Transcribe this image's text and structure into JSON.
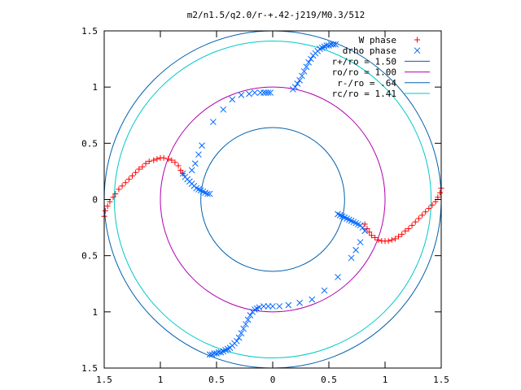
{
  "chart_data": {
    "type": "scatter",
    "title": "m2/n1.5/q2.0/r-+.42-j219/M0.3/512",
    "xlabel": "",
    "ylabel": "",
    "xlim": [
      -1.5,
      1.5
    ],
    "ylim": [
      -1.5,
      1.5
    ],
    "x_ticks": [
      {
        "value": -1.5,
        "label": "1.5"
      },
      {
        "value": -1.0,
        "label": "1"
      },
      {
        "value": -0.5,
        "label": "0.5"
      },
      {
        "value": 0.0,
        "label": "0"
      },
      {
        "value": 0.5,
        "label": "0.5"
      },
      {
        "value": 1.0,
        "label": "1"
      },
      {
        "value": 1.5,
        "label": "1.5"
      }
    ],
    "y_ticks": [
      {
        "value": 1.5,
        "label": "1.5"
      },
      {
        "value": 1.0,
        "label": "1"
      },
      {
        "value": 0.5,
        "label": "0.5"
      },
      {
        "value": 0.0,
        "label": "0"
      },
      {
        "value": -0.5,
        "label": "0.5"
      },
      {
        "value": -1.0,
        "label": "1"
      },
      {
        "value": -1.5,
        "label": "1.5"
      }
    ],
    "grid": false,
    "legend_position": "top-right",
    "series": [
      {
        "name": "W phase",
        "marker": "plus",
        "color": "#ff0000",
        "points": [
          [
            -1.5,
            -0.15
          ],
          [
            -1.49,
            -0.1
          ],
          [
            -1.47,
            -0.06
          ],
          [
            -1.45,
            -0.02
          ],
          [
            -1.42,
            0.02
          ],
          [
            -1.4,
            0.05
          ],
          [
            -1.37,
            0.09
          ],
          [
            -1.34,
            0.12
          ],
          [
            -1.31,
            0.15
          ],
          [
            -1.28,
            0.18
          ],
          [
            -1.25,
            0.21
          ],
          [
            -1.22,
            0.24
          ],
          [
            -1.19,
            0.27
          ],
          [
            -1.16,
            0.29
          ],
          [
            -1.13,
            0.32
          ],
          [
            -1.1,
            0.34
          ],
          [
            -1.06,
            0.35
          ],
          [
            -1.03,
            0.36
          ],
          [
            -1.0,
            0.37
          ],
          [
            -0.97,
            0.37
          ],
          [
            -0.93,
            0.36
          ],
          [
            -0.9,
            0.35
          ],
          [
            -0.87,
            0.33
          ],
          [
            -0.84,
            0.3
          ],
          [
            -0.82,
            0.26
          ],
          [
            -0.8,
            0.23
          ],
          [
            0.82,
            -0.22
          ],
          [
            0.84,
            -0.26
          ],
          [
            0.86,
            -0.29
          ],
          [
            0.88,
            -0.32
          ],
          [
            0.91,
            -0.34
          ],
          [
            0.94,
            -0.36
          ],
          [
            0.97,
            -0.37
          ],
          [
            1.0,
            -0.37
          ],
          [
            1.03,
            -0.37
          ],
          [
            1.06,
            -0.36
          ],
          [
            1.09,
            -0.35
          ],
          [
            1.12,
            -0.33
          ],
          [
            1.15,
            -0.31
          ],
          [
            1.18,
            -0.28
          ],
          [
            1.21,
            -0.26
          ],
          [
            1.24,
            -0.23
          ],
          [
            1.27,
            -0.2
          ],
          [
            1.3,
            -0.17
          ],
          [
            1.33,
            -0.14
          ],
          [
            1.36,
            -0.11
          ],
          [
            1.39,
            -0.08
          ],
          [
            1.42,
            -0.05
          ],
          [
            1.45,
            -0.02
          ],
          [
            1.47,
            0.02
          ],
          [
            1.49,
            0.06
          ],
          [
            1.5,
            0.1
          ]
        ]
      },
      {
        "name": "drho phase",
        "marker": "cross",
        "color": "#0066ff",
        "points": [
          [
            -0.8,
            0.23
          ],
          [
            -0.78,
            0.2
          ],
          [
            -0.76,
            0.18
          ],
          [
            -0.74,
            0.16
          ],
          [
            -0.72,
            0.14
          ],
          [
            -0.7,
            0.12
          ],
          [
            -0.68,
            0.1
          ],
          [
            -0.66,
            0.09
          ],
          [
            -0.64,
            0.08
          ],
          [
            -0.62,
            0.07
          ],
          [
            -0.6,
            0.06
          ],
          [
            -0.58,
            0.05
          ],
          [
            -0.56,
            0.05
          ],
          [
            -0.63,
            0.48
          ],
          [
            -0.66,
            0.4
          ],
          [
            -0.69,
            0.32
          ],
          [
            -0.72,
            0.26
          ],
          [
            -0.53,
            0.69
          ],
          [
            -0.44,
            0.8
          ],
          [
            -0.36,
            0.89
          ],
          [
            -0.28,
            0.93
          ],
          [
            -0.21,
            0.94
          ],
          [
            -0.16,
            0.95
          ],
          [
            -0.11,
            0.95
          ],
          [
            -0.08,
            0.95
          ],
          [
            -0.06,
            0.95
          ],
          [
            -0.04,
            0.95
          ],
          [
            -0.02,
            0.95
          ],
          [
            0.18,
            0.98
          ],
          [
            0.2,
            1.0
          ],
          [
            0.22,
            1.03
          ],
          [
            0.24,
            1.06
          ],
          [
            0.26,
            1.1
          ],
          [
            0.28,
            1.14
          ],
          [
            0.3,
            1.18
          ],
          [
            0.32,
            1.22
          ],
          [
            0.34,
            1.25
          ],
          [
            0.36,
            1.28
          ],
          [
            0.38,
            1.3
          ],
          [
            0.4,
            1.32
          ],
          [
            0.42,
            1.34
          ],
          [
            0.44,
            1.35
          ],
          [
            0.46,
            1.36
          ],
          [
            0.48,
            1.37
          ],
          [
            0.5,
            1.37
          ],
          [
            0.52,
            1.38
          ],
          [
            0.54,
            1.38
          ],
          [
            0.56,
            1.38
          ],
          [
            0.58,
            -0.13
          ],
          [
            0.6,
            -0.14
          ],
          [
            0.62,
            -0.15
          ],
          [
            0.64,
            -0.16
          ],
          [
            0.66,
            -0.17
          ],
          [
            0.68,
            -0.18
          ],
          [
            0.7,
            -0.19
          ],
          [
            0.72,
            -0.2
          ],
          [
            0.74,
            -0.21
          ],
          [
            0.76,
            -0.22
          ],
          [
            0.78,
            -0.23
          ],
          [
            0.8,
            -0.25
          ],
          [
            0.82,
            -0.28
          ],
          [
            0.78,
            -0.38
          ],
          [
            0.74,
            -0.45
          ],
          [
            0.7,
            -0.52
          ],
          [
            0.58,
            -0.69
          ],
          [
            0.46,
            -0.81
          ],
          [
            0.35,
            -0.89
          ],
          [
            0.24,
            -0.92
          ],
          [
            0.14,
            -0.94
          ],
          [
            0.06,
            -0.95
          ],
          [
            0.0,
            -0.95
          ],
          [
            -0.04,
            -0.95
          ],
          [
            -0.08,
            -0.95
          ],
          [
            -0.12,
            -0.96
          ],
          [
            -0.14,
            -0.97
          ],
          [
            -0.16,
            -0.98
          ],
          [
            -0.18,
            -1.0
          ],
          [
            -0.2,
            -1.03
          ],
          [
            -0.22,
            -1.07
          ],
          [
            -0.24,
            -1.11
          ],
          [
            -0.26,
            -1.15
          ],
          [
            -0.28,
            -1.19
          ],
          [
            -0.3,
            -1.23
          ],
          [
            -0.32,
            -1.26
          ],
          [
            -0.34,
            -1.28
          ],
          [
            -0.36,
            -1.3
          ],
          [
            -0.38,
            -1.32
          ],
          [
            -0.4,
            -1.33
          ],
          [
            -0.42,
            -1.34
          ],
          [
            -0.44,
            -1.35
          ],
          [
            -0.46,
            -1.36
          ],
          [
            -0.48,
            -1.36
          ],
          [
            -0.5,
            -1.37
          ],
          [
            -0.52,
            -1.37
          ],
          [
            -0.54,
            -1.38
          ],
          [
            -0.56,
            -1.38
          ]
        ]
      }
    ],
    "circles": [
      {
        "name": "r+/ro = 1.50",
        "radius": 1.5,
        "color": "#0060ad"
      },
      {
        "name": "ro/ro = 1.00",
        "radius": 1.0,
        "color": "#b000b0"
      },
      {
        "name": "r-/ro = .64",
        "radius": 0.64,
        "color": "#0060ad"
      },
      {
        "name": "rc/ro = 1.41",
        "radius": 1.41,
        "color": "#00c8c8"
      }
    ]
  }
}
